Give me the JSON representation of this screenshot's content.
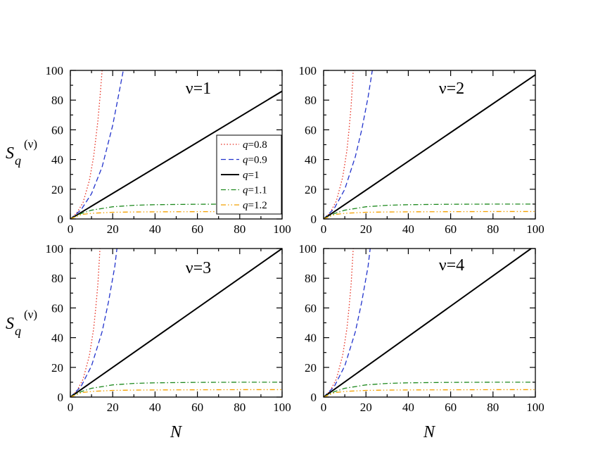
{
  "figure": {
    "ylabel_main": "S",
    "ylabel_sub": "q",
    "ylabel_sup": "(ν)",
    "xlabel": "N"
  },
  "legend": {
    "placement": "inside panel 1, right",
    "entries": [
      {
        "prefix": "q",
        "value": "=0.8"
      },
      {
        "prefix": "q",
        "value": "=0.9"
      },
      {
        "prefix": "q",
        "value": "=1"
      },
      {
        "prefix": "q",
        "value": "=1.1"
      },
      {
        "prefix": "q",
        "value": "=1.2"
      }
    ]
  },
  "chart_data": [
    {
      "type": "line",
      "title": "ν=1",
      "xlim": [
        0,
        100
      ],
      "ylim": [
        0,
        100
      ],
      "xticks": [
        "0",
        "20",
        "40",
        "60",
        "80",
        "100"
      ],
      "yticks": [
        "0",
        "20",
        "40",
        "60",
        "80",
        "100"
      ],
      "series": [
        {
          "name": "q=0.8",
          "color": "#e8382a",
          "dash": "dotted",
          "x": [
            0,
            3,
            6,
            9,
            11,
            13,
            14,
            15
          ],
          "y": [
            0,
            4,
            11,
            26,
            42,
            66,
            82,
            100
          ]
        },
        {
          "name": "q=0.9",
          "color": "#2233cc",
          "dash": "dashed",
          "x": [
            0,
            5,
            10,
            15,
            20,
            23,
            25
          ],
          "y": [
            0,
            6,
            17,
            35,
            63,
            85,
            100
          ]
        },
        {
          "name": "q=1",
          "color": "#000000",
          "dash": "solid",
          "x": [
            0,
            100
          ],
          "y": [
            0,
            86
          ]
        },
        {
          "name": "q=1.1",
          "color": "#1f8a1f",
          "dash": "dashdot",
          "x": [
            0,
            5,
            10,
            20,
            30,
            40,
            60,
            80,
            100
          ],
          "y": [
            0,
            3.6,
            5.9,
            8.2,
            9.2,
            9.6,
            9.9,
            10,
            10
          ]
        },
        {
          "name": "q=1.2",
          "color": "#f2a000",
          "dash": "dashdotdot",
          "x": [
            0,
            5,
            10,
            20,
            30,
            40,
            60,
            80,
            100
          ],
          "y": [
            0,
            2.9,
            3.8,
            4.5,
            4.7,
            4.8,
            4.9,
            5,
            5
          ]
        }
      ]
    },
    {
      "type": "line",
      "title": "ν=2",
      "xlim": [
        0,
        100
      ],
      "ylim": [
        0,
        100
      ],
      "xticks": [
        "0",
        "20",
        "40",
        "60",
        "80",
        "100"
      ],
      "yticks": [
        "0",
        "20",
        "40",
        "60",
        "80",
        "100"
      ],
      "series": [
        {
          "name": "q=0.8",
          "color": "#e8382a",
          "dash": "dotted",
          "x": [
            0,
            3,
            6,
            9,
            11,
            12,
            13,
            14
          ],
          "y": [
            0,
            4,
            12,
            28,
            46,
            60,
            76,
            100
          ]
        },
        {
          "name": "q=0.9",
          "color": "#2233cc",
          "dash": "dashed",
          "x": [
            0,
            5,
            10,
            15,
            18,
            21,
            23
          ],
          "y": [
            0,
            7,
            20,
            42,
            60,
            82,
            100
          ]
        },
        {
          "name": "q=1",
          "color": "#000000",
          "dash": "solid",
          "x": [
            0,
            100
          ],
          "y": [
            0,
            97
          ]
        },
        {
          "name": "q=1.1",
          "color": "#1f8a1f",
          "dash": "dashdot",
          "x": [
            0,
            5,
            10,
            20,
            30,
            40,
            60,
            80,
            100
          ],
          "y": [
            0,
            3.6,
            5.9,
            8.2,
            9.2,
            9.6,
            9.9,
            10,
            10
          ]
        },
        {
          "name": "q=1.2",
          "color": "#f2a000",
          "dash": "dashdotdot",
          "x": [
            0,
            5,
            10,
            20,
            30,
            40,
            60,
            80,
            100
          ],
          "y": [
            0,
            2.9,
            3.8,
            4.5,
            4.7,
            4.8,
            4.9,
            5,
            5
          ]
        }
      ]
    },
    {
      "type": "line",
      "title": "ν=3",
      "xlim": [
        0,
        100
      ],
      "ylim": [
        0,
        100
      ],
      "xticks": [
        "0",
        "20",
        "40",
        "60",
        "80",
        "100"
      ],
      "yticks": [
        "0",
        "20",
        "40",
        "60",
        "80",
        "100"
      ],
      "series": [
        {
          "name": "q=0.8",
          "color": "#e8382a",
          "dash": "dotted",
          "x": [
            0,
            3,
            6,
            9,
            11,
            12,
            13,
            14
          ],
          "y": [
            0,
            4,
            12,
            28,
            46,
            60,
            76,
            100
          ]
        },
        {
          "name": "q=0.9",
          "color": "#2233cc",
          "dash": "dashed",
          "x": [
            0,
            5,
            10,
            15,
            18,
            21,
            22
          ],
          "y": [
            0,
            7,
            21,
            44,
            64,
            88,
            100
          ]
        },
        {
          "name": "q=1",
          "color": "#000000",
          "dash": "solid",
          "x": [
            0,
            100
          ],
          "y": [
            0,
            100
          ]
        },
        {
          "name": "q=1.1",
          "color": "#1f8a1f",
          "dash": "dashdot",
          "x": [
            0,
            5,
            10,
            20,
            30,
            40,
            60,
            80,
            100
          ],
          "y": [
            0,
            3.6,
            5.9,
            8.2,
            9.2,
            9.6,
            9.9,
            10,
            10
          ]
        },
        {
          "name": "q=1.2",
          "color": "#f2a000",
          "dash": "dashdotdot",
          "x": [
            0,
            5,
            10,
            20,
            30,
            40,
            60,
            80,
            100
          ],
          "y": [
            0,
            2.9,
            3.8,
            4.5,
            4.7,
            4.8,
            4.9,
            5,
            5
          ]
        }
      ]
    },
    {
      "type": "line",
      "title": "ν=4",
      "xlim": [
        0,
        100
      ],
      "ylim": [
        0,
        100
      ],
      "xticks": [
        "0",
        "20",
        "40",
        "60",
        "80",
        "100"
      ],
      "yticks": [
        "0",
        "20",
        "40",
        "60",
        "80",
        "100"
      ],
      "series": [
        {
          "name": "q=0.8",
          "color": "#e8382a",
          "dash": "dotted",
          "x": [
            0,
            3,
            6,
            9,
            11,
            12,
            13,
            14
          ],
          "y": [
            0,
            4,
            12,
            28,
            46,
            60,
            76,
            100
          ]
        },
        {
          "name": "q=0.9",
          "color": "#2233cc",
          "dash": "dashed",
          "x": [
            0,
            5,
            10,
            15,
            18,
            21,
            22
          ],
          "y": [
            0,
            7,
            21,
            44,
            64,
            88,
            100
          ]
        },
        {
          "name": "q=1",
          "color": "#000000",
          "dash": "solid",
          "x": [
            0,
            98
          ],
          "y": [
            0,
            100
          ]
        },
        {
          "name": "q=1.1",
          "color": "#1f8a1f",
          "dash": "dashdot",
          "x": [
            0,
            5,
            10,
            20,
            30,
            40,
            60,
            80,
            100
          ],
          "y": [
            0,
            3.6,
            5.9,
            8.2,
            9.2,
            9.6,
            9.9,
            10,
            10
          ]
        },
        {
          "name": "q=1.2",
          "color": "#f2a000",
          "dash": "dashdotdot",
          "x": [
            0,
            5,
            10,
            20,
            30,
            40,
            60,
            80,
            100
          ],
          "y": [
            0,
            2.9,
            3.8,
            4.5,
            4.7,
            4.8,
            4.9,
            5,
            5
          ]
        }
      ]
    }
  ]
}
